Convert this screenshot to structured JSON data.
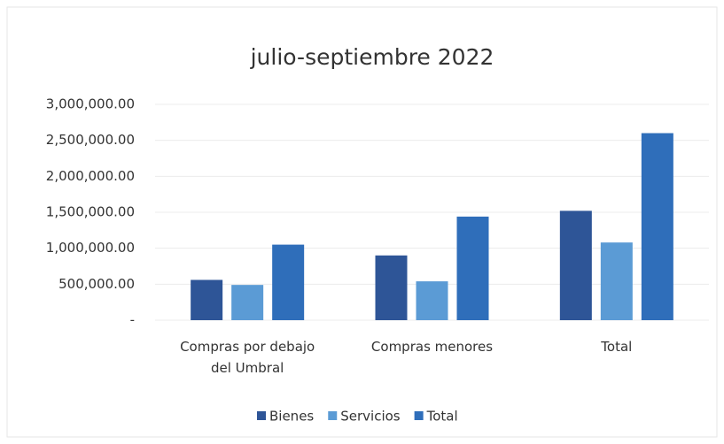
{
  "chart_data": {
    "type": "bar",
    "title": "julio-septiembre 2022",
    "categories": [
      "Compras por debajo del Umbral",
      "Compras menores",
      "Total"
    ],
    "series": [
      {
        "name": "Bienes",
        "color": "#2e5597",
        "values": [
          560000,
          900000,
          1520000
        ]
      },
      {
        "name": "Servicios",
        "color": "#5b9bd5",
        "values": [
          490000,
          540000,
          1080000
        ]
      },
      {
        "name": "Total",
        "color": "#2f6eba",
        "values": [
          1050000,
          1440000,
          2600000
        ]
      }
    ],
    "ylim": [
      0,
      3000000
    ],
    "yticks": [
      {
        "value": 0,
        "label": "-"
      },
      {
        "value": 500000,
        "label": "500,000.00"
      },
      {
        "value": 1000000,
        "label": "1,000,000.00"
      },
      {
        "value": 1500000,
        "label": "1,500,000.00"
      },
      {
        "value": 2000000,
        "label": "2,000,000.00"
      },
      {
        "value": 2500000,
        "label": "2,500,000.00"
      },
      {
        "value": 3000000,
        "label": "3,000,000.00"
      }
    ],
    "grid": true,
    "legend": "bottom"
  }
}
